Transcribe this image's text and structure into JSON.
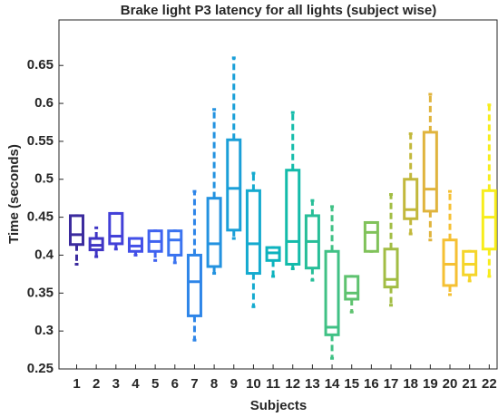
{
  "chart_data": {
    "type": "box",
    "title": "Brake light P3 latency for all lights (subject wise)",
    "xlabel": "Subjects",
    "ylabel": "Time (seconds)",
    "categories": [
      "1",
      "2",
      "3",
      "4",
      "5",
      "6",
      "7",
      "8",
      "9",
      "10",
      "11",
      "12",
      "13",
      "14",
      "15",
      "16",
      "17",
      "18",
      "19",
      "20",
      "21",
      "22"
    ],
    "boxes": [
      {
        "min": 0.388,
        "q1": 0.414,
        "median": 0.427,
        "q3": 0.452,
        "max": 0.452,
        "color": "#3b2b9e"
      },
      {
        "min": 0.398,
        "q1": 0.407,
        "median": 0.413,
        "q3": 0.422,
        "max": 0.436,
        "color": "#3f35c4"
      },
      {
        "min": 0.408,
        "q1": 0.415,
        "median": 0.425,
        "q3": 0.455,
        "max": 0.455,
        "color": "#4240d8"
      },
      {
        "min": 0.4,
        "q1": 0.405,
        "median": 0.412,
        "q3": 0.422,
        "max": 0.422,
        "color": "#4350e8"
      },
      {
        "min": 0.393,
        "q1": 0.405,
        "median": 0.418,
        "q3": 0.432,
        "max": 0.432,
        "color": "#3f62f0"
      },
      {
        "min": 0.39,
        "q1": 0.4,
        "median": 0.42,
        "q3": 0.432,
        "max": 0.432,
        "color": "#3a73f0"
      },
      {
        "min": 0.288,
        "q1": 0.32,
        "median": 0.365,
        "q3": 0.4,
        "max": 0.484,
        "color": "#2e85e8"
      },
      {
        "min": 0.376,
        "q1": 0.385,
        "median": 0.415,
        "q3": 0.475,
        "max": 0.592,
        "color": "#2392e0"
      },
      {
        "min": 0.422,
        "q1": 0.433,
        "median": 0.488,
        "q3": 0.552,
        "max": 0.66,
        "color": "#1a9fd8"
      },
      {
        "min": 0.332,
        "q1": 0.376,
        "median": 0.415,
        "q3": 0.485,
        "max": 0.508,
        "color": "#14aacf"
      },
      {
        "min": 0.372,
        "q1": 0.393,
        "median": 0.403,
        "q3": 0.41,
        "max": 0.41,
        "color": "#0db3be"
      },
      {
        "min": 0.382,
        "q1": 0.388,
        "median": 0.418,
        "q3": 0.512,
        "max": 0.588,
        "color": "#13bbaa"
      },
      {
        "min": 0.367,
        "q1": 0.383,
        "median": 0.418,
        "q3": 0.452,
        "max": 0.472,
        "color": "#27be98"
      },
      {
        "min": 0.264,
        "q1": 0.295,
        "median": 0.305,
        "q3": 0.405,
        "max": 0.464,
        "color": "#40c185"
      },
      {
        "min": 0.325,
        "q1": 0.342,
        "median": 0.35,
        "q3": 0.372,
        "max": 0.372,
        "color": "#5ec26f"
      },
      {
        "min": 0.405,
        "q1": 0.405,
        "median": 0.43,
        "q3": 0.443,
        "max": 0.443,
        "color": "#80c25a"
      },
      {
        "min": 0.334,
        "q1": 0.358,
        "median": 0.368,
        "q3": 0.408,
        "max": 0.48,
        "color": "#a2bd44"
      },
      {
        "min": 0.428,
        "q1": 0.448,
        "median": 0.46,
        "q3": 0.5,
        "max": 0.56,
        "color": "#c2b83b"
      },
      {
        "min": 0.42,
        "q1": 0.458,
        "median": 0.487,
        "q3": 0.562,
        "max": 0.612,
        "color": "#e0b43d"
      },
      {
        "min": 0.348,
        "q1": 0.36,
        "median": 0.388,
        "q3": 0.42,
        "max": 0.484,
        "color": "#f5c033"
      },
      {
        "min": 0.366,
        "q1": 0.374,
        "median": 0.388,
        "q3": 0.405,
        "max": 0.405,
        "color": "#f5d52a"
      },
      {
        "min": 0.372,
        "q1": 0.408,
        "median": 0.45,
        "q3": 0.485,
        "max": 0.598,
        "color": "#f7ed1c"
      }
    ],
    "xlim": [
      0.1,
      22.4
    ],
    "ylim": [
      0.25,
      0.71
    ],
    "yticks": [
      0.25,
      0.3,
      0.35,
      0.4,
      0.45,
      0.5,
      0.55,
      0.6,
      0.65
    ]
  }
}
